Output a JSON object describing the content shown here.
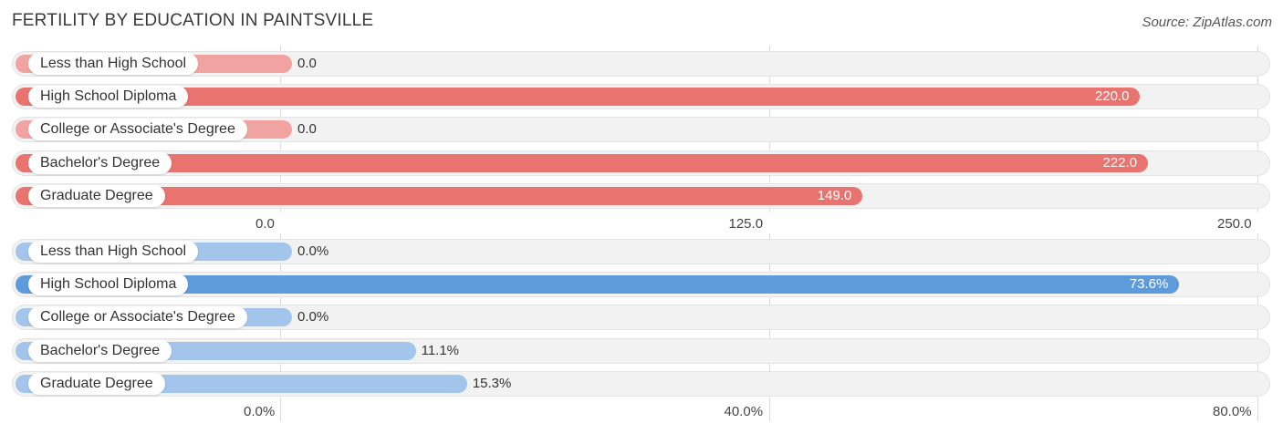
{
  "title": "Fertility by Education in Paintsville",
  "source": "Source: ZipAtlas.com",
  "chart_data": [
    {
      "type": "bar",
      "orientation": "horizontal",
      "categories": [
        "Less than High School",
        "High School Diploma",
        "College or Associate's Degree",
        "Bachelor's Degree",
        "Graduate Degree"
      ],
      "values": [
        0.0,
        220.0,
        0.0,
        222.0,
        149.0
      ],
      "value_labels": [
        "0.0",
        "220.0",
        "0.0",
        "222.0",
        "149.0"
      ],
      "xlim": [
        0,
        250
      ],
      "ticks": [
        0,
        125,
        250
      ],
      "tick_labels": [
        "0.0",
        "125.0",
        "250.0"
      ],
      "colors": {
        "strong": "#e8736f",
        "light": "#f0a3a0"
      }
    },
    {
      "type": "bar",
      "orientation": "horizontal",
      "categories": [
        "Less than High School",
        "High School Diploma",
        "College or Associate's Degree",
        "Bachelor's Degree",
        "Graduate Degree"
      ],
      "values": [
        0.0,
        73.6,
        0.0,
        11.1,
        15.3
      ],
      "value_labels": [
        "0.0%",
        "73.6%",
        "0.0%",
        "11.1%",
        "15.3%"
      ],
      "xlim": [
        0,
        80
      ],
      "ticks": [
        0,
        40,
        80
      ],
      "tick_labels": [
        "0.0%",
        "40.0%",
        "80.0%"
      ],
      "colors": {
        "strong": "#5e9bdb",
        "light": "#a3c5ec"
      }
    }
  ]
}
